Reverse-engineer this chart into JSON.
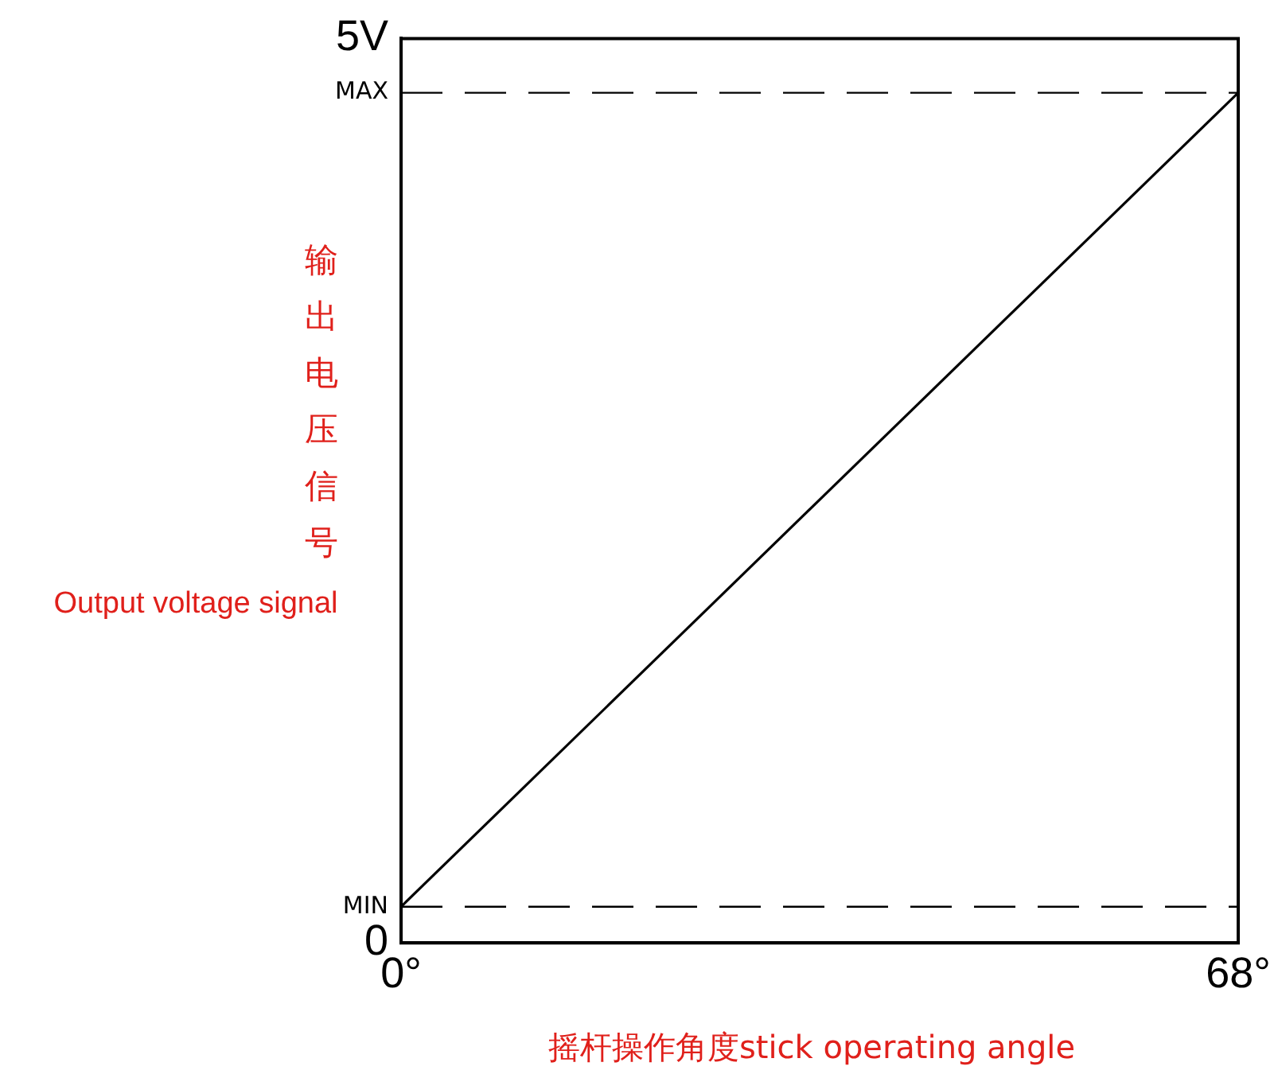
{
  "chart_data": {
    "type": "line",
    "xlabel": "摇杆操作角度stick operating angle",
    "ylabel": "输出电压信号\nOutput voltage signal",
    "x": [
      0,
      68
    ],
    "series": [
      {
        "color": "#000000",
        "values": [
          0.2,
          4.7
        ]
      }
    ],
    "xlim": [
      0,
      68
    ],
    "xticks": [
      {
        "value": 0,
        "label": "0°"
      },
      {
        "value": 68,
        "label": "68°"
      }
    ],
    "ylim": [
      0,
      5
    ],
    "yticks": [
      {
        "value": 0,
        "label": "0"
      },
      {
        "value": 5,
        "label": "5V"
      }
    ],
    "ref_lines": [
      {
        "axis": "y",
        "value": 0.2,
        "label": "MIN",
        "line_style": "dashed",
        "color": "#000000"
      },
      {
        "axis": "y",
        "value": 4.7,
        "label": "MAX",
        "line_style": "dashed",
        "color": "#000000"
      }
    ],
    "legend": false,
    "marker": "none",
    "line_style": "solid"
  }
}
